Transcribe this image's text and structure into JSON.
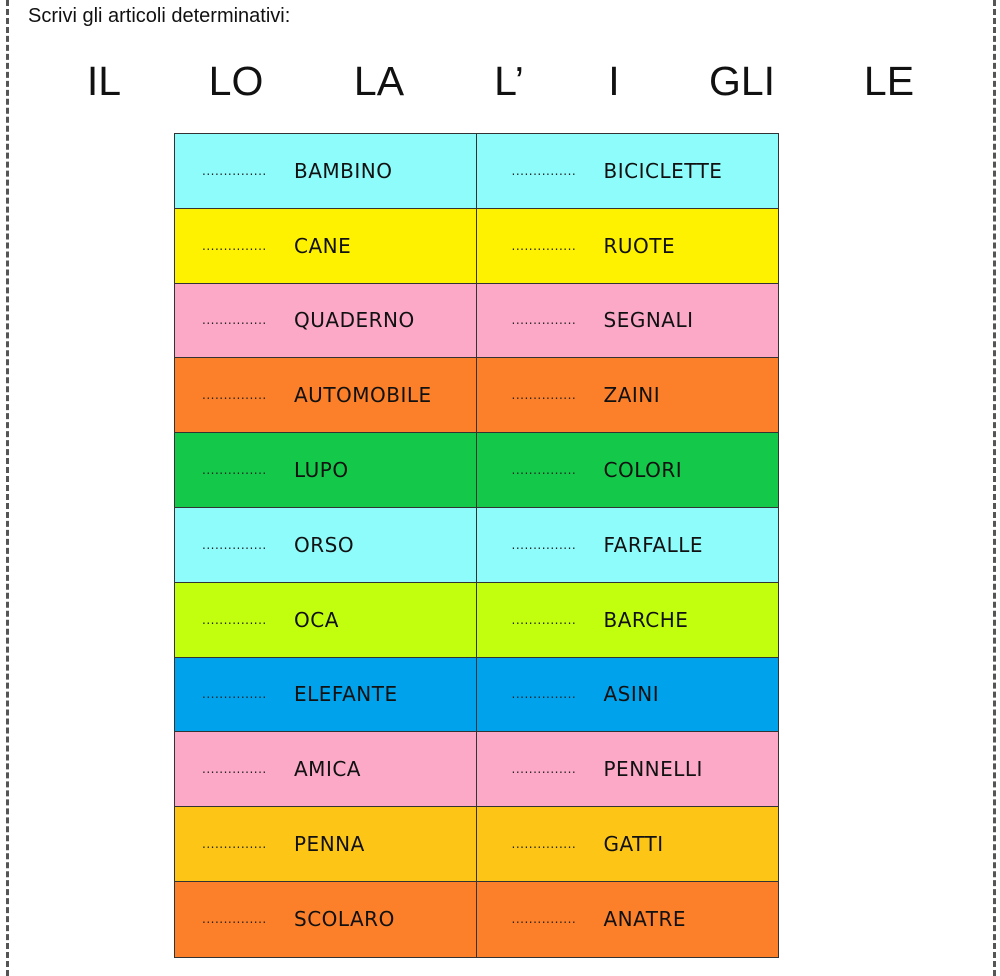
{
  "instruction": "Scrivi gli articoli determinativi:",
  "articles": [
    "IL",
    "LO",
    "LA",
    "L’",
    "I",
    "GLI",
    "LE"
  ],
  "blank": "...............",
  "rows": [
    {
      "left": "BAMBINO",
      "right": "BICICLETTE",
      "color": "#8ffcfc"
    },
    {
      "left": "CANE",
      "right": "RUOTE",
      "color": "#fff200"
    },
    {
      "left": "QUADERNO",
      "right": "SEGNALI",
      "color": "#fca9c8"
    },
    {
      "left": "AUTOMOBILE",
      "right": "ZAINI",
      "color": "#fc7f2a"
    },
    {
      "left": "LUPO",
      "right": "COLORI",
      "color": "#14c84a"
    },
    {
      "left": "ORSO",
      "right": "FARFALLE",
      "color": "#8ffcfc"
    },
    {
      "left": "OCA",
      "right": "BARCHE",
      "color": "#c2ff0f"
    },
    {
      "left": "ELEFANTE",
      "right": "ASINI",
      "color": "#00a2ec"
    },
    {
      "left": "AMICA",
      "right": "PENNELLI",
      "color": "#fca9c8"
    },
    {
      "left": "PENNA",
      "right": "GATTI",
      "color": "#fdc617"
    },
    {
      "left": "SCOLARO",
      "right": "ANATRE",
      "color": "#fc7f2a"
    }
  ]
}
